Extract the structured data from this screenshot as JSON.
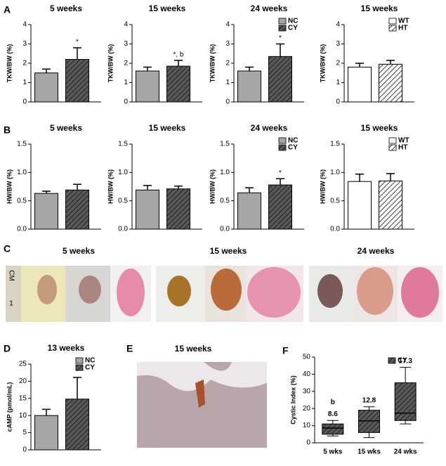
{
  "panel_labels": [
    "A",
    "B",
    "C",
    "D",
    "E",
    "F"
  ],
  "photos": {
    "panel_C_titles": [
      "5 weeks",
      "15 weeks",
      "24 weeks"
    ],
    "ruler_labels": [
      "CM",
      "1"
    ],
    "panel_E_title": "15 weeks"
  },
  "chart_data": [
    {
      "type": "bar",
      "title": "5 weeks",
      "y_label": "TKW/BW (%)",
      "ylim": [
        0,
        4
      ],
      "yticks": [
        0,
        1,
        2,
        3,
        4
      ],
      "series": [
        {
          "color": "#a6a6a6",
          "hatch": false,
          "values": [
            1.5
          ],
          "errors": [
            0.2
          ]
        },
        {
          "color": "#595959",
          "hatch": true,
          "values": [
            2.2
          ],
          "errors": [
            0.6
          ],
          "annotations": [
            "*"
          ]
        }
      ]
    },
    {
      "type": "bar",
      "title": "15 weeks",
      "y_label": "TKW/BW (%)",
      "ylim": [
        0,
        4
      ],
      "yticks": [
        0,
        1,
        2,
        3,
        4
      ],
      "series": [
        {
          "color": "#a6a6a6",
          "hatch": false,
          "values": [
            1.6
          ],
          "errors": [
            0.2
          ]
        },
        {
          "color": "#595959",
          "hatch": true,
          "values": [
            1.85
          ],
          "errors": [
            0.3
          ],
          "annotations": [
            "*, b"
          ]
        }
      ]
    },
    {
      "type": "bar",
      "title": "24 weeks",
      "y_label": "TKW/BW (%)",
      "ylim": [
        0,
        4
      ],
      "yticks": [
        0,
        1,
        2,
        3,
        4
      ],
      "series": [
        {
          "name": "NC",
          "color": "#a6a6a6",
          "hatch": false,
          "values": [
            1.6
          ],
          "errors": [
            0.2
          ]
        },
        {
          "name": "CY",
          "color": "#595959",
          "hatch": true,
          "values": [
            2.35
          ],
          "errors": [
            0.65
          ],
          "annotations": [
            "*"
          ]
        }
      ]
    },
    {
      "type": "bar",
      "title": "15 weeks",
      "y_label": "TKW/BW (%)",
      "ylim": [
        0,
        4
      ],
      "yticks": [
        0,
        1,
        2,
        3,
        4
      ],
      "series": [
        {
          "name": "WT",
          "color": "#ffffff",
          "hatch": false,
          "values": [
            1.8
          ],
          "errors": [
            0.2
          ]
        },
        {
          "name": "HT",
          "color": "#ffffff",
          "hatch": true,
          "values": [
            1.95
          ],
          "errors": [
            0.2
          ]
        }
      ]
    },
    {
      "type": "bar",
      "title": "5 weeks",
      "y_label": "HW/BW (%)",
      "ylim": [
        0,
        1.5
      ],
      "yticks": [
        {
          "value": 0,
          "label": "0.0"
        },
        {
          "value": 0.5,
          "label": "0.5"
        },
        {
          "value": 1,
          "label": "1.0"
        },
        {
          "value": 1.5,
          "label": "1.5"
        }
      ],
      "series": [
        {
          "color": "#a6a6a6",
          "hatch": false,
          "values": [
            0.63
          ],
          "errors": [
            0.04
          ]
        },
        {
          "color": "#595959",
          "hatch": true,
          "values": [
            0.69
          ],
          "errors": [
            0.1
          ]
        }
      ]
    },
    {
      "type": "bar",
      "title": "15 weeks",
      "y_label": "HW/BW (%)",
      "ylim": [
        0,
        1.5
      ],
      "yticks": [
        {
          "value": 0,
          "label": "0.0"
        },
        {
          "value": 0.5,
          "label": "0.5"
        },
        {
          "value": 1,
          "label": "1.0"
        },
        {
          "value": 1.5,
          "label": "1.5"
        }
      ],
      "series": [
        {
          "color": "#a6a6a6",
          "hatch": false,
          "values": [
            0.69
          ],
          "errors": [
            0.08
          ]
        },
        {
          "color": "#595959",
          "hatch": true,
          "values": [
            0.71
          ],
          "errors": [
            0.05
          ]
        }
      ]
    },
    {
      "type": "bar",
      "title": "24 weeks",
      "y_label": "HW/BW (%)",
      "ylim": [
        0,
        1.5
      ],
      "yticks": [
        {
          "value": 0,
          "label": "0.0"
        },
        {
          "value": 0.5,
          "label": "0.5"
        },
        {
          "value": 1,
          "label": "1.0"
        },
        {
          "value": 1.5,
          "label": "1.5"
        }
      ],
      "series": [
        {
          "name": "NC",
          "color": "#a6a6a6",
          "hatch": false,
          "values": [
            0.64
          ],
          "errors": [
            0.09
          ]
        },
        {
          "name": "CY",
          "color": "#595959",
          "hatch": true,
          "values": [
            0.78
          ],
          "errors": [
            0.11
          ],
          "annotations": [
            "*"
          ]
        }
      ]
    },
    {
      "type": "bar",
      "title": "15 weeks",
      "y_label": "HW/BW (%)",
      "ylim": [
        0,
        1.5
      ],
      "yticks": [
        {
          "value": 0,
          "label": "0.0"
        },
        {
          "value": 0.5,
          "label": "0.5"
        },
        {
          "value": 1,
          "label": "1.0"
        },
        {
          "value": 1.5,
          "label": "1.5"
        }
      ],
      "series": [
        {
          "name": "WT",
          "color": "#ffffff",
          "hatch": false,
          "values": [
            0.84
          ],
          "errors": [
            0.13
          ]
        },
        {
          "name": "HT",
          "color": "#ffffff",
          "hatch": true,
          "values": [
            0.85
          ],
          "errors": [
            0.13
          ]
        }
      ]
    },
    {
      "type": "bar",
      "title": "13 weeks",
      "y_label": "cAMP (pmol/mL)",
      "ylim": [
        0,
        25
      ],
      "yticks": [
        0,
        5,
        10,
        15,
        20,
        25
      ],
      "series": [
        {
          "name": "NC",
          "color": "#a6a6a6",
          "hatch": false,
          "values": [
            10
          ],
          "errors": [
            1.8
          ]
        },
        {
          "name": "CY",
          "color": "#595959",
          "hatch": true,
          "values": [
            14.8
          ],
          "errors": [
            6.3
          ],
          "annotations": [
            "*"
          ]
        }
      ]
    },
    {
      "type": "box",
      "y_label": "Cystic Index (%)",
      "ylim": [
        0,
        50
      ],
      "yticks": [
        0,
        10,
        20,
        30,
        40,
        50
      ],
      "categories": [
        "5 wks",
        "15 wks",
        "24 wks"
      ],
      "series": [
        {
          "name": "CY",
          "color": "#595959",
          "hatch": true,
          "whisker_low": [
            4,
            3,
            11
          ],
          "q1": [
            5,
            6,
            13
          ],
          "median": [
            8.6,
            12.8,
            17.3
          ],
          "q3": [
            11,
            19,
            35
          ],
          "whisker_high": [
            13,
            21,
            44
          ],
          "annotations": [
            "b",
            null,
            null
          ]
        }
      ]
    }
  ]
}
